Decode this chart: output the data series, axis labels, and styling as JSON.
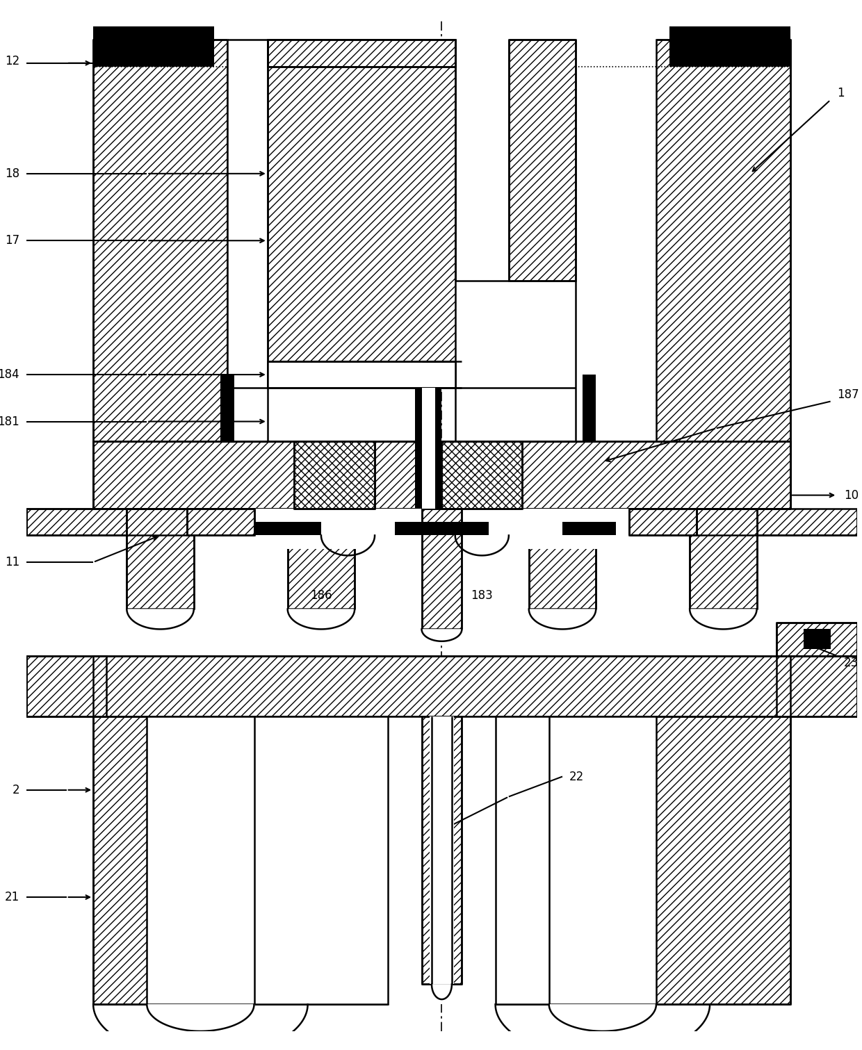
{
  "bg_color": "#ffffff",
  "lw": 1.8,
  "fs": 12,
  "hatch_fw": "///",
  "hatch_xx": "xxx"
}
